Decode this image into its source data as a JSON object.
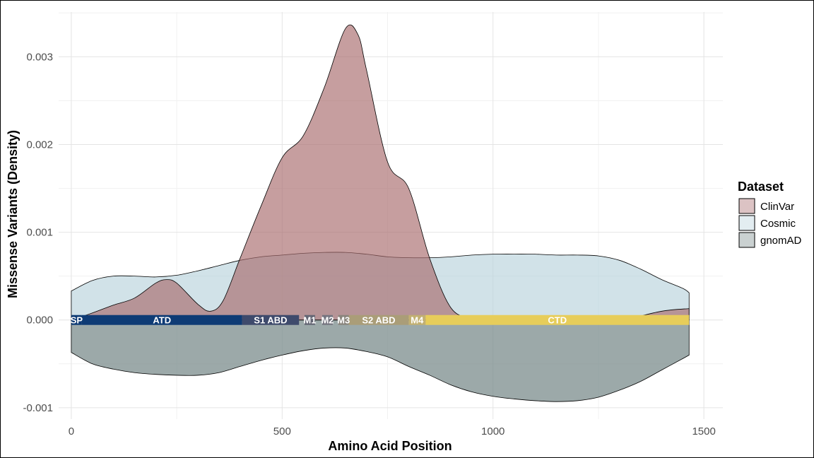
{
  "chart_data": {
    "type": "area",
    "xlabel": "Amino Acid Position",
    "ylabel": "Missense Variants (Density)",
    "xlim": [
      -30,
      1545
    ],
    "ylim": [
      -0.00113,
      0.00351
    ],
    "x_ticks": [
      0,
      500,
      1000,
      1500
    ],
    "x_tick_labels": [
      "0",
      "500",
      "1000",
      "1500"
    ],
    "y_ticks": [
      -0.001,
      0.0,
      0.001,
      0.002,
      0.003
    ],
    "y_tick_labels": [
      "-0.001",
      "0.000",
      "0.001",
      "0.002",
      "0.003"
    ],
    "grid": true,
    "legend": {
      "title": "Dataset",
      "position": "right",
      "entries": [
        "ClinVar",
        "Cosmic",
        "gnomAD"
      ]
    },
    "series": [
      {
        "name": "gnomAD",
        "color": "#7b8c8c",
        "direction": "negative",
        "x": [
          0,
          50,
          100,
          150,
          200,
          250,
          300,
          350,
          400,
          450,
          500,
          550,
          600,
          650,
          700,
          750,
          800,
          850,
          900,
          950,
          1000,
          1050,
          1100,
          1150,
          1200,
          1250,
          1300,
          1350,
          1400,
          1450,
          1465
        ],
        "y": [
          -0.00037,
          -0.0005,
          -0.00056,
          -0.0006,
          -0.00062,
          -0.00063,
          -0.00063,
          -0.0006,
          -0.00053,
          -0.00046,
          -0.0004,
          -0.00035,
          -0.00032,
          -0.00032,
          -0.00036,
          -0.00042,
          -0.00053,
          -0.00063,
          -0.00074,
          -0.00082,
          -0.00087,
          -0.0009,
          -0.00092,
          -0.00093,
          -0.00092,
          -0.00088,
          -0.0008,
          -0.0007,
          -0.00057,
          -0.00044,
          -0.0004
        ]
      },
      {
        "name": "Cosmic",
        "color": "#b8d2dc",
        "direction": "positive",
        "x": [
          0,
          50,
          100,
          150,
          200,
          250,
          300,
          350,
          400,
          450,
          500,
          550,
          600,
          650,
          700,
          750,
          800,
          850,
          900,
          950,
          1000,
          1050,
          1100,
          1150,
          1200,
          1250,
          1300,
          1350,
          1400,
          1450,
          1465
        ],
        "y": [
          0.00033,
          0.00045,
          0.0005,
          0.0005,
          0.00049,
          0.00051,
          0.00056,
          0.00062,
          0.00068,
          0.00072,
          0.00074,
          0.00076,
          0.00077,
          0.00077,
          0.00075,
          0.00072,
          0.00071,
          0.00071,
          0.00072,
          0.00074,
          0.00075,
          0.00075,
          0.00075,
          0.00074,
          0.00074,
          0.00073,
          0.00068,
          0.00058,
          0.00046,
          0.00036,
          0.00031
        ]
      },
      {
        "name": "ClinVar",
        "color": "#a86a6c",
        "direction": "positive",
        "x": [
          0,
          50,
          100,
          150,
          200,
          225,
          250,
          300,
          330,
          360,
          400,
          450,
          500,
          550,
          600,
          650,
          680,
          700,
          750,
          800,
          850,
          900,
          950,
          1000,
          1100,
          1200,
          1300,
          1400,
          1465
        ],
        "y": [
          0.0,
          8e-05,
          0.00017,
          0.00025,
          0.00042,
          0.00046,
          0.00042,
          0.00018,
          0.0001,
          0.00022,
          0.0007,
          0.0013,
          0.00185,
          0.0021,
          0.00265,
          0.00332,
          0.00325,
          0.00285,
          0.0018,
          0.0015,
          0.0007,
          0.00014,
          2e-05,
          0.0,
          0.0,
          0.0,
          0.0,
          0.0001,
          0.00013
        ]
      }
    ],
    "domains": [
      {
        "label": "SP",
        "start": 0,
        "end": 25,
        "color": "#0e3b75"
      },
      {
        "label": "ATD",
        "start": 25,
        "end": 405,
        "color": "#0e3b75"
      },
      {
        "label": "S1 ABD",
        "start": 405,
        "end": 540,
        "color": "#3e4a6c"
      },
      {
        "label": "M1",
        "start": 553,
        "end": 578,
        "color": "#646674"
      },
      {
        "label": "M2",
        "start": 595,
        "end": 620,
        "color": "#757580"
      },
      {
        "label": "M3",
        "start": 633,
        "end": 658,
        "color": "#8a857d"
      },
      {
        "label": "S2 ABD",
        "start": 658,
        "end": 800,
        "color": "#aa9d78"
      },
      {
        "label": "M4",
        "start": 800,
        "end": 840,
        "color": "#c2b072"
      },
      {
        "label": "CTD",
        "start": 840,
        "end": 1465,
        "color": "#e7cd5a"
      }
    ]
  }
}
